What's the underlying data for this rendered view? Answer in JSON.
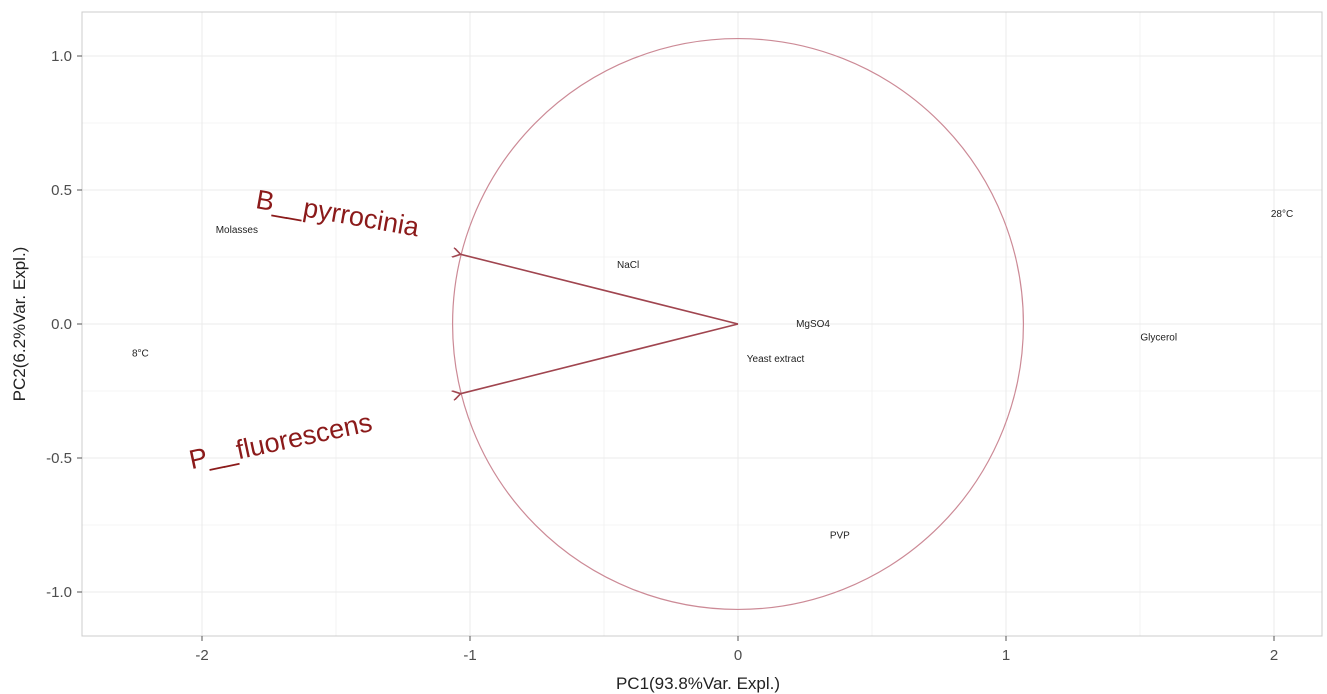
{
  "chart_data": {
    "type": "scatter",
    "subtype": "pca-biplot",
    "xlabel": "PC1(93.8%Var. Expl.)",
    "ylabel": "PC2(6.2%Var. Expl.)",
    "xlim": [
      -2.45,
      2.2
    ],
    "ylim": [
      -1.17,
      1.2
    ],
    "xticks": [
      -2,
      -1,
      0,
      1,
      2
    ],
    "xtick_labels": [
      "-2",
      "-1",
      "0",
      "1",
      "2"
    ],
    "yticks": [
      -1.0,
      -0.5,
      0.0,
      0.5,
      1.0
    ],
    "ytick_labels": [
      "-1.0",
      "-0.5",
      "0.0",
      "0.5",
      "1.0"
    ],
    "grid": true,
    "points": [
      {
        "label": "Molasses",
        "x": -1.87,
        "y": 0.35
      },
      {
        "label": "8°C",
        "x": -2.23,
        "y": -0.11
      },
      {
        "label": "NaCl",
        "x": -0.41,
        "y": 0.22
      },
      {
        "label": "MgSO4",
        "x": 0.28,
        "y": 0.0
      },
      {
        "label": "Yeast extract",
        "x": 0.14,
        "y": -0.13
      },
      {
        "label": "Glycerol",
        "x": 1.57,
        "y": -0.05
      },
      {
        "label": "28°C",
        "x": 2.03,
        "y": 0.41
      },
      {
        "label": "PVP",
        "x": 0.38,
        "y": -0.79
      }
    ],
    "circle": {
      "cx": 0,
      "cy": 0,
      "r": 1.065
    },
    "arrows": [
      {
        "label": "B__pyrrocinia",
        "x": -1.035,
        "y": 0.26,
        "label_x": -1.5,
        "label_y": 0.38,
        "angle": 10
      },
      {
        "label": "P__fluorescens",
        "x": -1.035,
        "y": -0.26,
        "label_x": -1.7,
        "label_y": -0.47,
        "angle": -12
      }
    ],
    "colors": {
      "arrow": "#a0454f",
      "circle": "#cc8a96",
      "arrow_label": "#8b1a1a",
      "grid": "#ebebeb",
      "axis": "#cccccc"
    }
  }
}
